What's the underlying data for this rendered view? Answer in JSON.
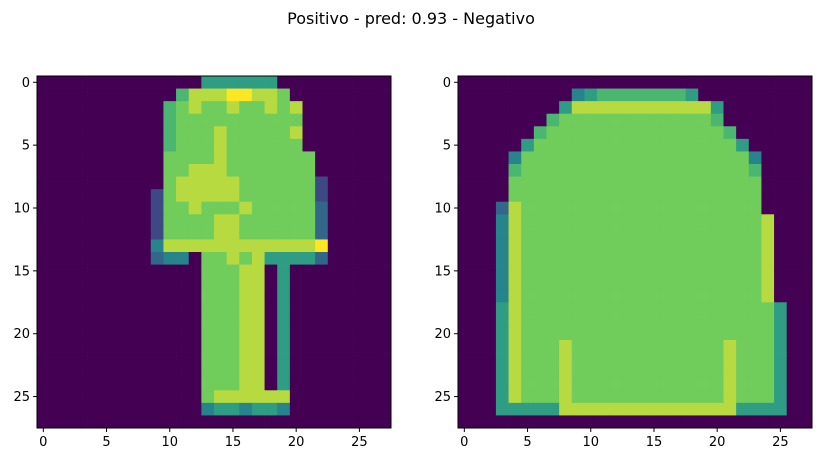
{
  "title": "Positivo - pred: 0.93 - Negativo",
  "chart_data": [
    {
      "type": "heatmap",
      "colormap": "viridis",
      "rows": 28,
      "cols": 28,
      "vmin": 0,
      "vmax": 9,
      "xlim": [
        -0.5,
        27.5
      ],
      "ylim": [
        27.5,
        -0.5
      ],
      "xticks": [
        0,
        5,
        10,
        15,
        20,
        25
      ],
      "yticks": [
        0,
        5,
        10,
        15,
        20,
        25
      ],
      "grid": false,
      "values_note_scale": "0-9 intensity levels",
      "values": [
        "0000000000000555555000000000",
        "0000000000068889988700000000",
        "0000000000678778778780000000",
        "0000000000677777777770000000",
        "0000000000677787777780000000",
        "0000000000677787777770000000",
        "0000000000777787777777000000",
        "0000000000778887777777000000",
        "0000000000788888777777200000",
        "0000000002788888777777200000",
        "0000000002778777877777300000",
        "0000000002777788777777300000",
        "0000000002777788777777300000",
        "0000000004888888888888900000",
        "0000000003440778785555300000",
        "0000000000000777880500000000",
        "0000000000000777880500000000",
        "0000000000000777880500000000",
        "0000000000000777880500000000",
        "0000000000000777880500000000",
        "0000000000000777880500000000",
        "0000000000000777880500000000",
        "0000000000000777880500000000",
        "0000000000000777880500000000",
        "0000000000000777880500000000",
        "0000000000000788888800000000",
        "0000000000000455455400000000",
        "0000000000000000000000000000"
      ]
    },
    {
      "type": "heatmap",
      "colormap": "viridis",
      "rows": 28,
      "cols": 28,
      "vmin": 0,
      "vmax": 9,
      "xlim": [
        -0.5,
        27.5
      ],
      "ylim": [
        27.5,
        -0.5
      ],
      "xticks": [
        0,
        5,
        10,
        15,
        20,
        25
      ],
      "yticks": [
        0,
        5,
        10,
        15,
        20,
        25
      ],
      "grid": false,
      "values": [
        "0000000000000000000000000000",
        "0000000004566666665000000000",
        "0000000058888888888850000000",
        "0000000677777777777760000000",
        "0000006777777777777776000000",
        "0000057777777777777777500000",
        "0000477777777777777777740000",
        "0000677777777777777777760000",
        "0000777777777777777777770000",
        "0000777777777777777777770000",
        "0003877777777777777777770000",
        "0004877777777777777777778000",
        "0004877777777777777777778000",
        "0004877777777777777777778000",
        "0004877777777777777777778000",
        "0004877777777777777777778000",
        "0004877777777777777777778000",
        "0004877777777777777777778000",
        "0005877777777777777777777500",
        "0005877777777777777777777500",
        "0005877777777777777777777500",
        "0005877787777777777778777500",
        "0005877787777777777778777500",
        "0005877787777777777778777500",
        "0005877787777777777778777500",
        "0005877787777777777778777500",
        "0005555588888888888888555500",
        "0000000000000000000000000000"
      ]
    }
  ]
}
